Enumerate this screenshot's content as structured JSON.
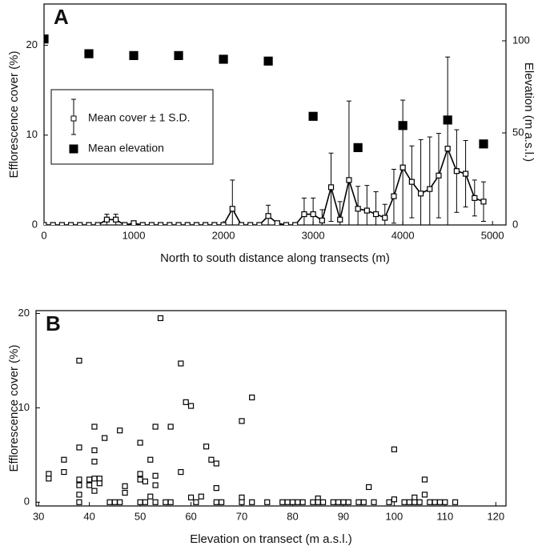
{
  "chart_data": [
    {
      "type": "line",
      "panel_label": "A",
      "x_label": "North to south distance along transects (m)",
      "y_label": "Efflorescence cover (%)",
      "y2_label": "Elevation (m a.s.l.)",
      "xlim": [
        0,
        5150
      ],
      "xticks": [
        0,
        1000,
        2000,
        3000,
        4000,
        5000
      ],
      "ylim": [
        0,
        24.6
      ],
      "yticks": [
        0,
        10,
        20
      ],
      "y2lim": [
        0,
        120
      ],
      "y2ticks": [
        0,
        50,
        100
      ],
      "legend_position": "center-left",
      "series": [
        {
          "name": "Mean cover ± 1 S.D.",
          "color": "#000000",
          "marker": "open-square",
          "line": true,
          "x": [
            0,
            100,
            200,
            300,
            400,
            500,
            600,
            700,
            800,
            900,
            1000,
            1100,
            1200,
            1300,
            1400,
            1500,
            1600,
            1700,
            1800,
            1900,
            2000,
            2100,
            2200,
            2300,
            2400,
            2500,
            2600,
            2700,
            2800,
            2900,
            3000,
            3100,
            3200,
            3300,
            3400,
            3500,
            3600,
            3700,
            3800,
            3900,
            4000,
            4100,
            4200,
            4300,
            4400,
            4500,
            4600,
            4700,
            4800,
            4900
          ],
          "values": [
            0,
            0,
            0,
            0,
            0,
            0,
            0,
            0.6,
            0.6,
            0,
            0.2,
            0,
            0,
            0,
            0,
            0,
            0,
            0,
            0,
            0,
            0,
            1.8,
            0,
            0,
            0,
            1.0,
            0.2,
            0,
            0,
            1.2,
            1.2,
            0.5,
            4.2,
            0.6,
            5.0,
            1.8,
            1.6,
            1.2,
            0.8,
            3.2,
            6.4,
            4.8,
            3.5,
            4.0,
            5.5,
            8.5,
            6.0,
            5.7,
            3.0,
            2.6
          ],
          "errors": [
            0,
            0,
            0,
            0,
            0,
            0,
            0,
            0.6,
            0.6,
            0,
            0,
            0,
            0,
            0,
            0,
            0,
            0,
            0,
            0,
            0,
            0,
            3.2,
            0,
            0,
            0,
            1.2,
            0,
            0,
            0,
            1.8,
            1.8,
            1.2,
            3.8,
            2.0,
            8.8,
            2.5,
            2.8,
            2.5,
            1.5,
            3.0,
            7.5,
            4.0,
            6.0,
            5.8,
            4.7,
            10.2,
            4.6,
            3.7,
            2.0,
            2.2
          ]
        },
        {
          "name": "Mean elevation",
          "color": "#000000",
          "marker": "filled-square",
          "line": false,
          "axis": "y2",
          "x": [
            0,
            500,
            1000,
            1500,
            2000,
            2500,
            3000,
            3500,
            4000,
            4500,
            4900
          ],
          "values": [
            101,
            93,
            92,
            92,
            90,
            89,
            59,
            42,
            54,
            57,
            44
          ]
        }
      ]
    },
    {
      "type": "scatter",
      "panel_label": "B",
      "x_label": "Elevation on transect (m a.s.l.)",
      "y_label": "Efflorescence cover (%)",
      "xlim": [
        29.5,
        122
      ],
      "xticks": [
        30,
        40,
        50,
        60,
        70,
        80,
        90,
        100,
        110,
        120
      ],
      "ylim": [
        -0.4,
        20.3
      ],
      "yticks": [
        0,
        10,
        20
      ],
      "series": [
        {
          "color": "#000000",
          "marker": "open-square",
          "x": [
            32,
            32,
            35,
            35,
            38,
            38,
            38,
            38,
            38,
            38,
            40,
            40,
            41,
            41,
            41,
            41,
            41,
            43,
            42,
            42,
            44,
            45,
            46,
            46,
            47,
            47,
            50,
            50,
            50,
            50,
            51,
            51,
            52,
            52,
            53,
            53,
            54,
            53,
            53,
            56,
            56,
            55,
            58,
            58,
            59,
            60,
            60,
            61,
            62,
            63,
            64,
            65,
            65,
            65,
            66,
            70,
            70,
            70,
            72,
            72,
            75,
            78,
            79,
            80,
            81,
            82,
            84,
            85,
            85,
            86,
            88,
            89,
            90,
            91,
            93,
            94,
            95,
            96,
            99,
            100,
            100,
            102,
            103,
            104,
            104,
            105,
            106,
            106,
            107,
            108,
            109,
            110,
            112
          ],
          "values": [
            3.0,
            2.5,
            4.5,
            3.2,
            15,
            5.8,
            2.4,
            1.8,
            0.8,
            0,
            2.4,
            1.8,
            8,
            5.5,
            4.3,
            2.5,
            1.2,
            6.8,
            2.5,
            2,
            0,
            0,
            7.6,
            0,
            1.7,
            1.0,
            6.3,
            3.0,
            2.4,
            0,
            0,
            2.2,
            4.5,
            0.6,
            0,
            8,
            19.5,
            2.8,
            1.8,
            8,
            0,
            0,
            14.7,
            3.2,
            10.6,
            10.2,
            0.5,
            0,
            0.6,
            5.9,
            4.5,
            4.1,
            1.5,
            0,
            0,
            8.6,
            0.5,
            0,
            11.1,
            0,
            0,
            0,
            0,
            0,
            0,
            0,
            0,
            0.4,
            0,
            0,
            0,
            0,
            0,
            0,
            0,
            0,
            1.6,
            0,
            0,
            5.6,
            0.3,
            0,
            0,
            0.5,
            0,
            0,
            0.8,
            2.4,
            0,
            0,
            0,
            0,
            0
          ]
        }
      ]
    }
  ]
}
